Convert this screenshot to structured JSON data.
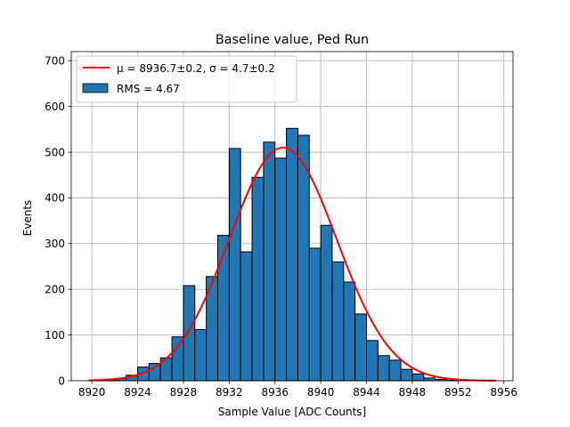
{
  "chart_data": {
    "type": "bar",
    "title": "Baseline value, Ped Run",
    "xlabel": "Sample Value [ADC Counts]",
    "ylabel": "Events",
    "xlim": [
      8918.2,
      8956.8
    ],
    "ylim": [
      0,
      720
    ],
    "grid": true,
    "legend_position": "top-left",
    "x_ticks": [
      8920,
      8924,
      8928,
      8932,
      8936,
      8940,
      8944,
      8948,
      8952,
      8956
    ],
    "y_ticks": [
      0,
      100,
      200,
      300,
      400,
      500,
      600,
      700
    ],
    "bin_width": 1,
    "bins": [
      {
        "left": 8920,
        "value": 1
      },
      {
        "left": 8921,
        "value": 2
      },
      {
        "left": 8922,
        "value": 5
      },
      {
        "left": 8923,
        "value": 12
      },
      {
        "left": 8924,
        "value": 30
      },
      {
        "left": 8925,
        "value": 38
      },
      {
        "left": 8926,
        "value": 50
      },
      {
        "left": 8927,
        "value": 96
      },
      {
        "left": 8928,
        "value": 208
      },
      {
        "left": 8929,
        "value": 112
      },
      {
        "left": 8930,
        "value": 228
      },
      {
        "left": 8931,
        "value": 318
      },
      {
        "left": 8932,
        "value": 508
      },
      {
        "left": 8933,
        "value": 282
      },
      {
        "left": 8934,
        "value": 445
      },
      {
        "left": 8935,
        "value": 522
      },
      {
        "left": 8936,
        "value": 487
      },
      {
        "left": 8937,
        "value": 552
      },
      {
        "left": 8938,
        "value": 537
      },
      {
        "left": 8939,
        "value": 290
      },
      {
        "left": 8940,
        "value": 340
      },
      {
        "left": 8941,
        "value": 260
      },
      {
        "left": 8942,
        "value": 216
      },
      {
        "left": 8943,
        "value": 146
      },
      {
        "left": 8944,
        "value": 88
      },
      {
        "left": 8945,
        "value": 55
      },
      {
        "left": 8946,
        "value": 45
      },
      {
        "left": 8947,
        "value": 25
      },
      {
        "left": 8948,
        "value": 15
      },
      {
        "left": 8949,
        "value": 6
      },
      {
        "left": 8950,
        "value": 3
      },
      {
        "left": 8951,
        "value": 1
      }
    ],
    "fit": {
      "mu": 8936.7,
      "sigma": 4.7,
      "amplitude": 510,
      "x_range": [
        8919.7,
        8955.3
      ]
    },
    "colors": {
      "bar_fill": "#1f77b4",
      "bar_edge": "#000000",
      "fit_line": "#ff0000",
      "grid": "#b0b0b0"
    },
    "legend": [
      {
        "kind": "line",
        "label": "μ = 8936.7±0.2, σ = 4.7±0.2"
      },
      {
        "kind": "patch",
        "label": "RMS = 4.67"
      }
    ]
  }
}
